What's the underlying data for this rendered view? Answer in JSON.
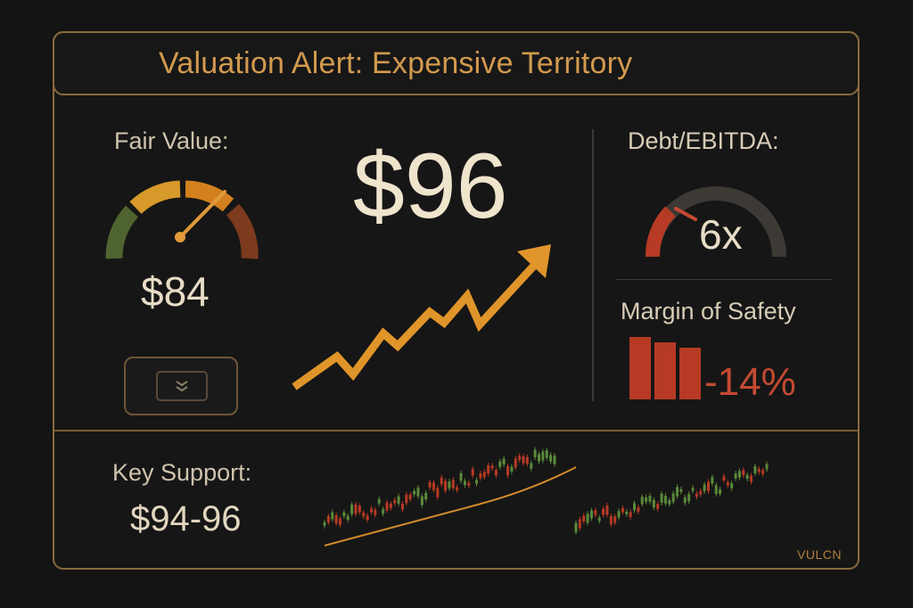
{
  "header": {
    "title": "Valuation Alert: Expensive Territory"
  },
  "fair_value": {
    "label": "Fair Value:",
    "value": "$84"
  },
  "price": {
    "value": "$96"
  },
  "debt_ebitda": {
    "label": "Debt/EBITDA:",
    "value": "6x"
  },
  "margin_of_safety": {
    "label": "Margin of Safety",
    "value": "-14%"
  },
  "key_support": {
    "label": "Key Support:",
    "value": "$94-96"
  },
  "brand": "VULCN",
  "icons": {
    "button": "chevrons-down-icon",
    "trend": "trend-up-arrow-icon"
  },
  "colors": {
    "accent": "#d29a4e",
    "text": "#e7dcc6",
    "negative": "#c44a32",
    "positive": "#5a8a3a",
    "border": "#8a6a3e"
  }
}
